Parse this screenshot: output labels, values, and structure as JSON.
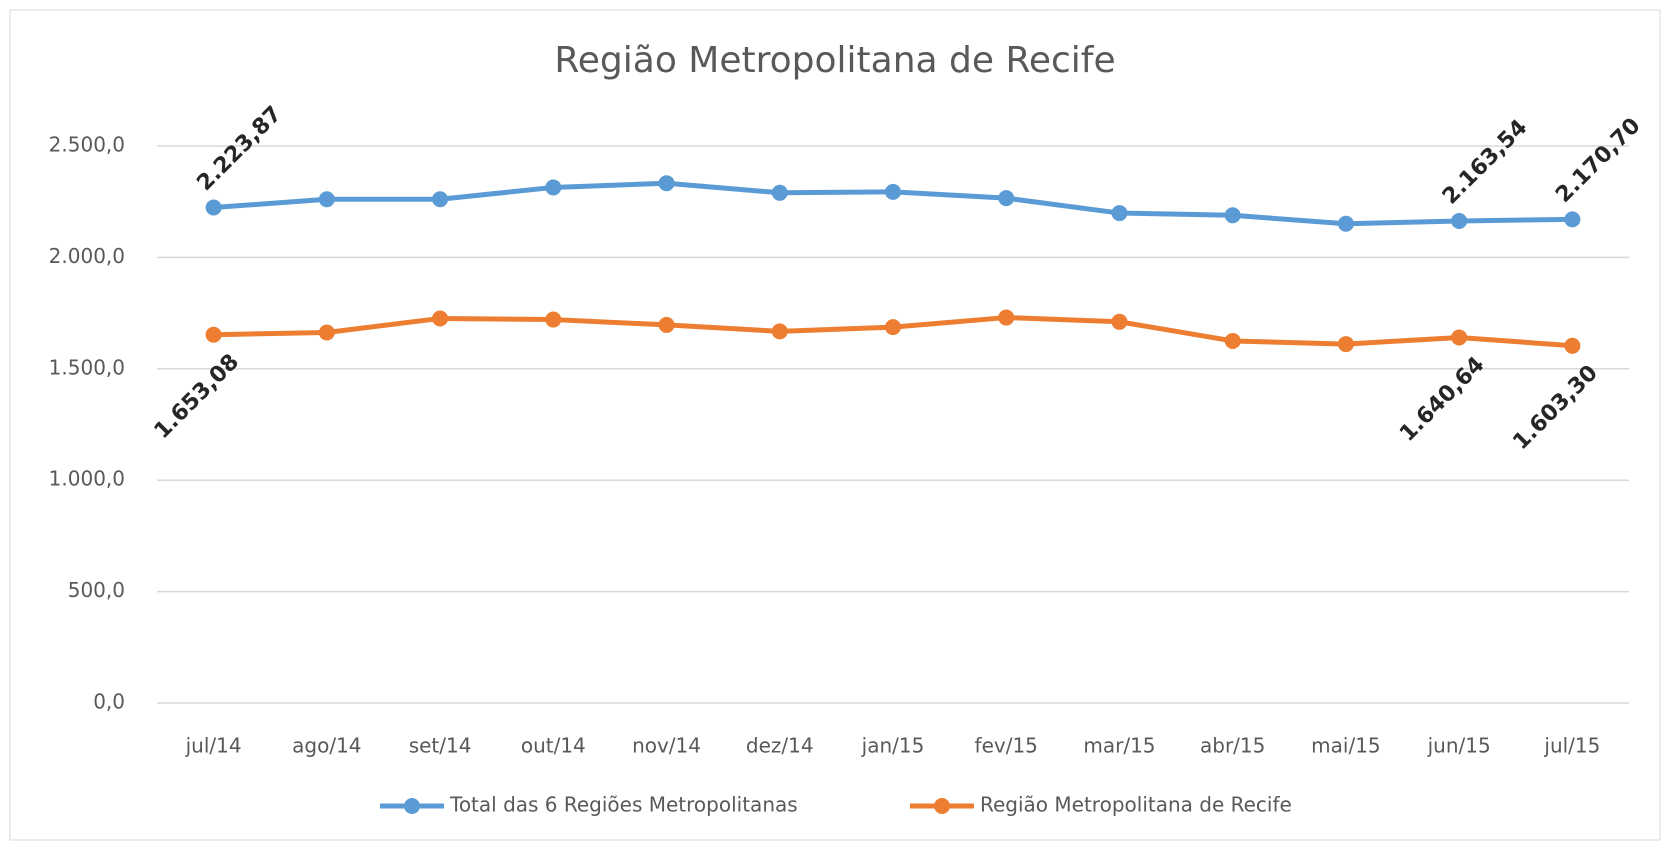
{
  "chart_data": {
    "type": "line",
    "title": "Região Metropolitana de Recife",
    "categories": [
      "jul/14",
      "ago/14",
      "set/14",
      "out/14",
      "nov/14",
      "dez/14",
      "jan/15",
      "fev/15",
      "mar/15",
      "abr/15",
      "mai/15",
      "jun/15",
      "jul/15"
    ],
    "series": [
      {
        "name": "Total das 6 Regiões Metropolitanas",
        "color": "#5b9bd5",
        "values": [
          2223.87,
          2261,
          2261,
          2314,
          2333,
          2290,
          2294,
          2266,
          2199,
          2189,
          2151,
          2163.54,
          2170.7
        ],
        "value_labels": [
          "2.223,87",
          null,
          null,
          null,
          null,
          null,
          null,
          null,
          null,
          null,
          null,
          "2.163,54",
          "2.170,70"
        ]
      },
      {
        "name": "Região Metropolitana de Recife",
        "color": "#ed7d31",
        "values": [
          1653.08,
          1663,
          1726,
          1721,
          1697,
          1668,
          1687,
          1730,
          1711,
          1625,
          1611,
          1640.64,
          1603.3
        ],
        "value_labels": [
          "1.653,08",
          null,
          null,
          null,
          null,
          null,
          null,
          null,
          null,
          null,
          null,
          "1.640,64",
          "1.603,30"
        ]
      }
    ],
    "ylim": [
      0,
      2500
    ],
    "yticks": [
      {
        "value": 0,
        "label": "0,0"
      },
      {
        "value": 500,
        "label": "500,0"
      },
      {
        "value": 1000,
        "label": "1.000,0"
      },
      {
        "value": 1500,
        "label": "1.500,0"
      },
      {
        "value": 2000,
        "label": "2.000,0"
      },
      {
        "value": 2500,
        "label": "2.500,0"
      }
    ],
    "grid": true,
    "legend": "bottom"
  }
}
